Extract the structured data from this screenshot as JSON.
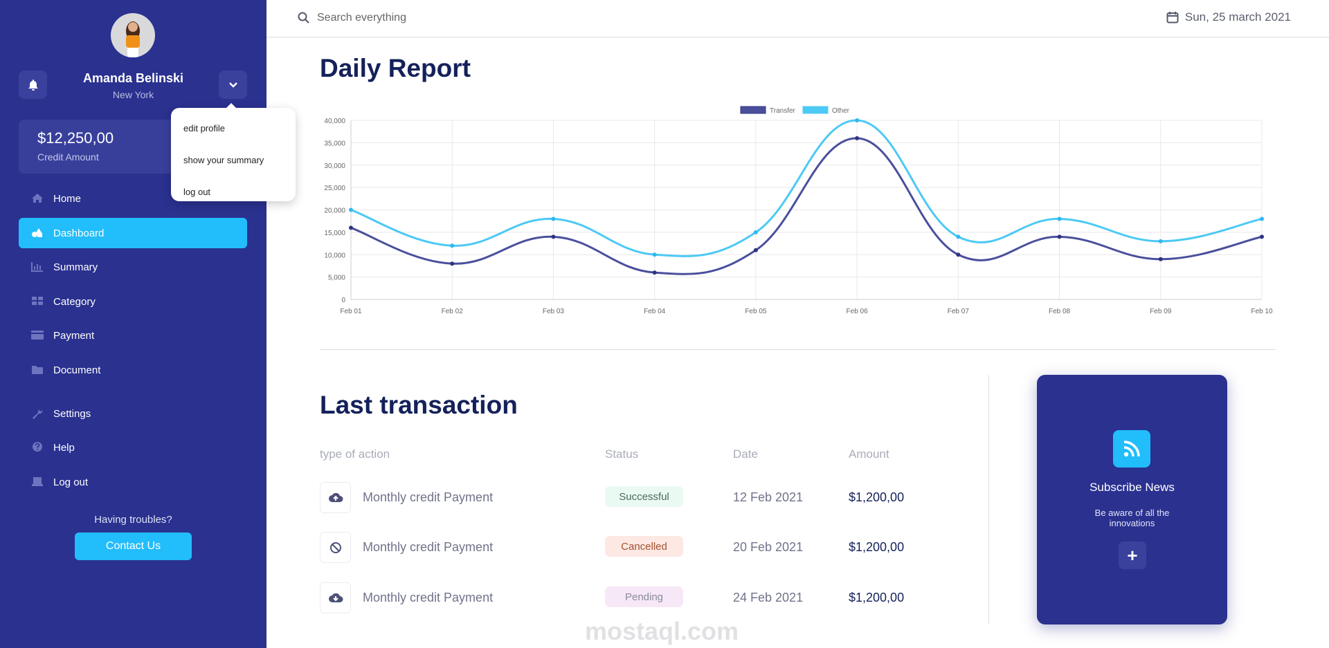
{
  "user": {
    "name": "Amanda Belinski",
    "city": "New York",
    "credit_amount": "$12,250,00",
    "credit_label": "Credit Amount"
  },
  "dropdown": [
    "edit profile",
    "show your summary",
    "log out"
  ],
  "nav": [
    {
      "label": "Home",
      "icon": "home-icon"
    },
    {
      "label": "Dashboard",
      "icon": "shapes-icon",
      "active": true
    },
    {
      "label": "Summary",
      "icon": "chart-icon"
    },
    {
      "label": "Category",
      "icon": "grid-icon"
    },
    {
      "label": "Payment",
      "icon": "card-icon"
    },
    {
      "label": "Document",
      "icon": "folder-icon"
    },
    {
      "label": "Settings",
      "icon": "wrench-icon"
    },
    {
      "label": "Help",
      "icon": "help-icon"
    },
    {
      "label": "Log out",
      "icon": "logout-icon"
    }
  ],
  "support": {
    "text": "Having troubles?",
    "button": "Contact Us"
  },
  "header": {
    "search_placeholder": "Search everything",
    "date": "Sun, 25 march 2021"
  },
  "report_title": "Daily Report",
  "chart_data": {
    "type": "line",
    "categories": [
      "Feb 01",
      "Feb 02",
      "Feb 03",
      "Feb 04",
      "Feb 05",
      "Feb 06",
      "Feb 07",
      "Feb 08",
      "Feb 09",
      "Feb 10"
    ],
    "series": [
      {
        "name": "Transfer",
        "color": "#4a4f9c",
        "values": [
          16000,
          8000,
          14000,
          6000,
          11000,
          36000,
          10000,
          14000,
          9000,
          14000
        ]
      },
      {
        "name": "Other",
        "color": "#4cc9f5",
        "values": [
          20000,
          12000,
          18000,
          10000,
          15000,
          40000,
          14000,
          18000,
          13000,
          18000
        ]
      }
    ],
    "yticks": [
      "0",
      "5,000",
      "10,000",
      "15,000",
      "20,000",
      "25,000",
      "30,000",
      "35,000",
      "40,000"
    ],
    "ylim": [
      0,
      40000
    ],
    "legend": "top-center",
    "grid": true
  },
  "transactions": {
    "title": "Last transaction",
    "headers": [
      "type of action",
      "Status",
      "Date",
      "Amount"
    ],
    "rows": [
      {
        "icon": "cloud-upload-icon",
        "action": "Monthly credit Payment",
        "status": "Successful",
        "date": "12 Feb 2021",
        "amount": "$1,200,00"
      },
      {
        "icon": "ban-icon",
        "action": "Monthly credit Payment",
        "status": "Cancelled",
        "date": "20 Feb 2021",
        "amount": "$1,200,00"
      },
      {
        "icon": "cloud-download-icon",
        "action": "Monthly credit Payment",
        "status": "Pending",
        "date": "24 Feb 2021",
        "amount": "$1,200,00"
      }
    ]
  },
  "status_colors": {
    "Successful": [
      "#eafaf3",
      "#4b6a5b"
    ],
    "Cancelled": [
      "#fde8e3",
      "#a4502e"
    ],
    "Pending": [
      "#f7e8f7",
      "#8a8a99"
    ]
  },
  "subscribe": {
    "title": "Subscribe News",
    "subtitle": "Be aware of all the innovations",
    "button": "+"
  },
  "watermark": "mostaql.com"
}
